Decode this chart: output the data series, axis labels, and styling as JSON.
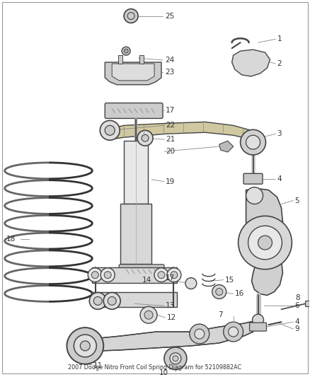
{
  "title": "2007 Dodge Nitro Front Coil Spring Diagram for 52109882AC",
  "background_color": "#ffffff",
  "line_color": "#444444",
  "figsize": [
    4.38,
    5.33
  ],
  "dpi": 100
}
